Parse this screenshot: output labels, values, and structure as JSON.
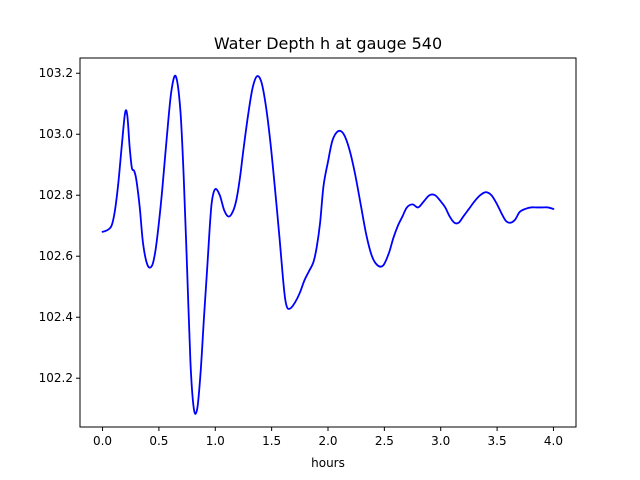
{
  "chart_data": {
    "type": "line",
    "title": "Water Depth h at gauge 540",
    "xlabel": "hours",
    "ylabel": "",
    "xlim": [
      -0.2,
      4.2
    ],
    "ylim": [
      102.04,
      103.25
    ],
    "xticks": [
      0.0,
      0.5,
      1.0,
      1.5,
      2.0,
      2.5,
      3.0,
      3.5,
      4.0
    ],
    "xtick_labels": [
      "0.0",
      "0.5",
      "1.0",
      "1.5",
      "2.0",
      "2.5",
      "3.0",
      "3.5",
      "4.0"
    ],
    "yticks": [
      102.2,
      102.4,
      102.6,
      102.8,
      103.0,
      103.2
    ],
    "ytick_labels": [
      "102.2",
      "102.4",
      "102.6",
      "102.8",
      "103.0",
      "103.2"
    ],
    "grid": false,
    "series": [
      {
        "color": "#0000ff",
        "x": [
          0.0,
          0.04,
          0.08,
          0.11,
          0.14,
          0.17,
          0.2,
          0.22,
          0.24,
          0.26,
          0.28,
          0.3,
          0.33,
          0.36,
          0.4,
          0.44,
          0.47,
          0.5,
          0.53,
          0.57,
          0.61,
          0.65,
          0.69,
          0.72,
          0.75,
          0.78,
          0.81,
          0.84,
          0.87,
          0.9,
          0.93,
          0.95,
          0.97,
          1.0,
          1.04,
          1.08,
          1.12,
          1.16,
          1.19,
          1.22,
          1.25,
          1.29,
          1.33,
          1.37,
          1.41,
          1.45,
          1.49,
          1.53,
          1.57,
          1.6,
          1.62,
          1.64,
          1.67,
          1.71,
          1.75,
          1.79,
          1.83,
          1.87,
          1.9,
          1.93,
          1.96,
          2.0,
          2.04,
          2.09,
          2.14,
          2.19,
          2.24,
          2.29,
          2.34,
          2.39,
          2.44,
          2.49,
          2.54,
          2.58,
          2.62,
          2.66,
          2.7,
          2.75,
          2.8,
          2.85,
          2.9,
          2.95,
          3.0,
          3.04,
          3.08,
          3.12,
          3.16,
          3.2,
          3.25,
          3.3,
          3.35,
          3.4,
          3.45,
          3.5,
          3.54,
          3.58,
          3.62,
          3.66,
          3.7,
          3.75,
          3.8,
          3.85,
          3.9,
          3.95,
          4.0
        ],
        "y": [
          102.68,
          102.685,
          102.7,
          102.75,
          102.84,
          102.96,
          103.07,
          103.06,
          102.96,
          102.89,
          102.88,
          102.85,
          102.76,
          102.64,
          102.57,
          102.57,
          102.62,
          102.71,
          102.82,
          102.99,
          103.14,
          103.19,
          103.08,
          102.86,
          102.56,
          102.25,
          102.1,
          102.1,
          102.22,
          102.4,
          102.57,
          102.69,
          102.78,
          102.82,
          102.8,
          102.75,
          102.73,
          102.75,
          102.79,
          102.86,
          102.95,
          103.06,
          103.15,
          103.19,
          103.17,
          103.09,
          102.97,
          102.82,
          102.66,
          102.53,
          102.46,
          102.43,
          102.43,
          102.45,
          102.48,
          102.52,
          102.55,
          102.58,
          102.63,
          102.71,
          102.83,
          102.91,
          102.98,
          103.01,
          103.0,
          102.95,
          102.87,
          102.77,
          102.67,
          102.6,
          102.57,
          102.57,
          102.61,
          102.66,
          102.7,
          102.73,
          102.76,
          102.77,
          102.76,
          102.78,
          102.8,
          102.8,
          102.78,
          102.76,
          102.73,
          102.71,
          102.71,
          102.73,
          102.755,
          102.78,
          102.8,
          102.81,
          102.8,
          102.77,
          102.74,
          102.715,
          102.71,
          102.72,
          102.745,
          102.755,
          102.76,
          102.76,
          102.76,
          102.76,
          102.755
        ]
      }
    ]
  }
}
